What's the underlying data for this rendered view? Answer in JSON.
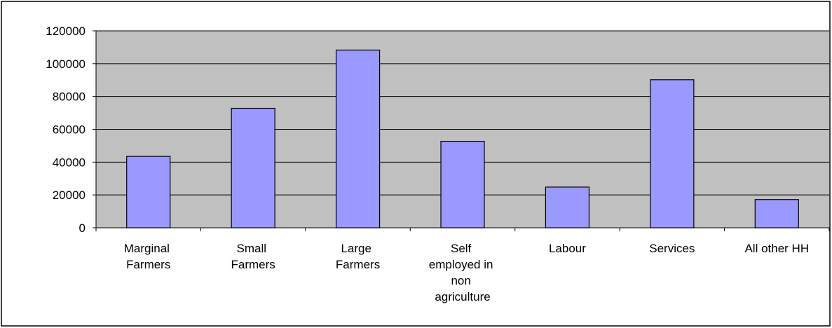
{
  "chart_data": {
    "type": "bar",
    "categories": [
      "Marginal Farmers",
      "Small Farmers",
      "Large Farmers",
      "Self employed in non agriculture",
      "Labour",
      "Services",
      "All other HH"
    ],
    "values": [
      43500,
      72800,
      108300,
      52700,
      24800,
      90200,
      17200
    ],
    "color": "#9999ff",
    "ylim": [
      0,
      120000
    ],
    "yticks": [
      0,
      20000,
      40000,
      60000,
      80000,
      100000,
      120000
    ],
    "grid": true
  }
}
